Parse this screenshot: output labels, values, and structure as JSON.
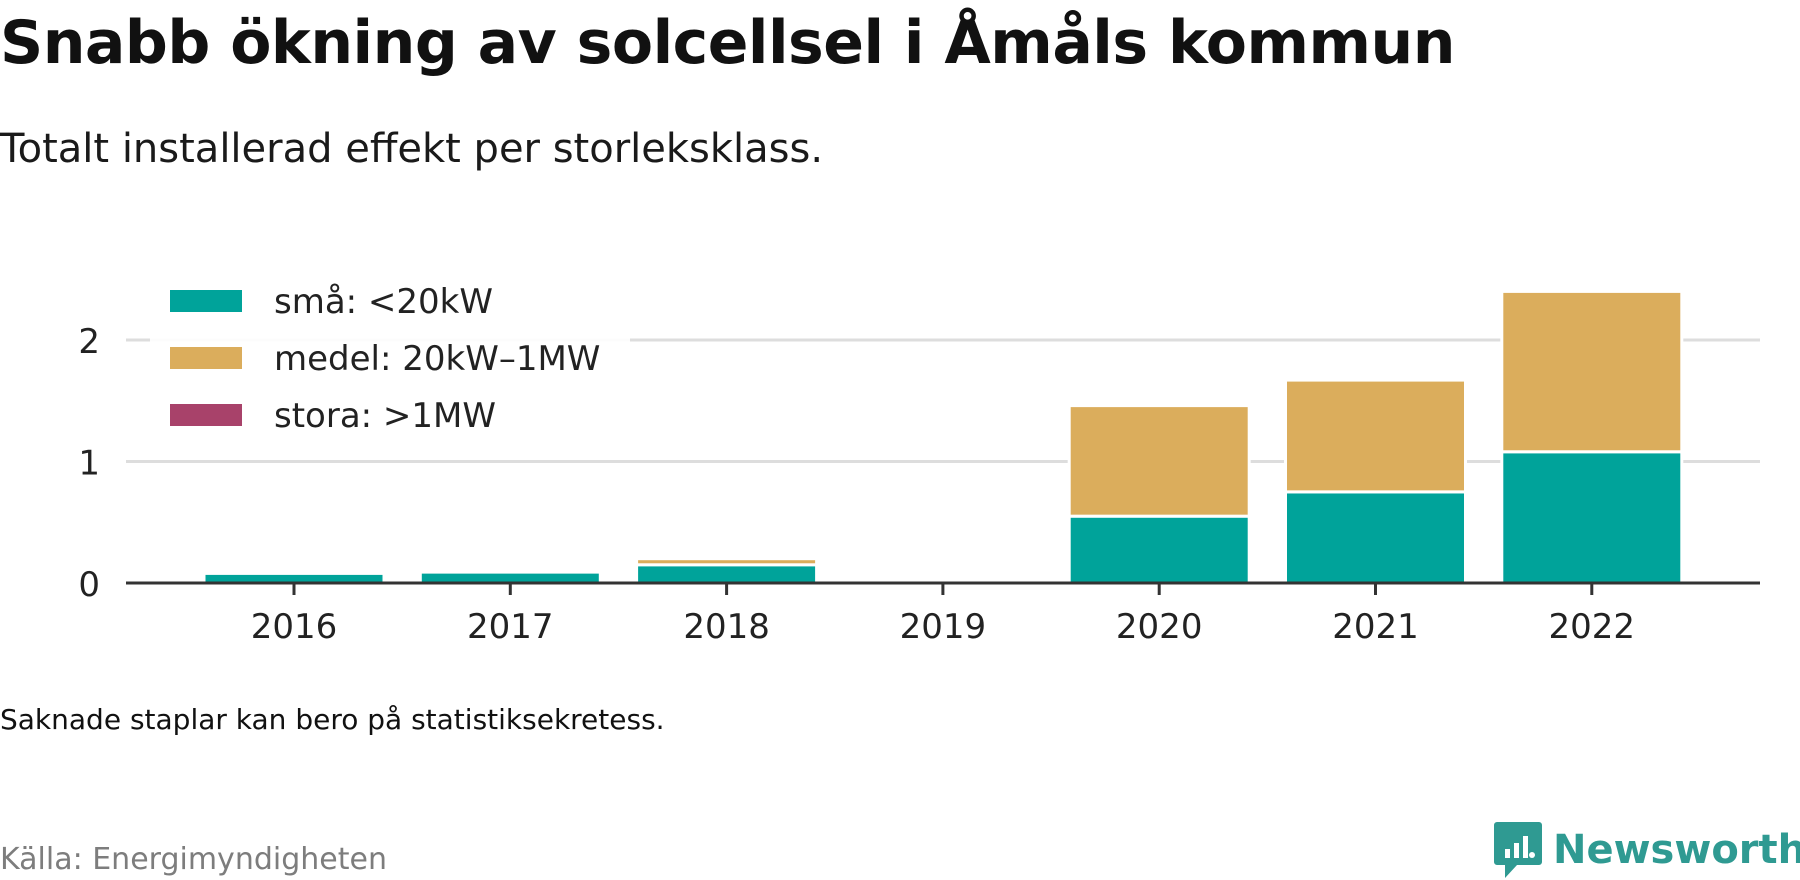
{
  "title": "Snabb ökning av solcellsel i Åmåls kommun",
  "subtitle": "Totalt installerad effekt per storleksklass.",
  "footnote": "Saknade staplar kan bero på statistiksekretess.",
  "source": "Källa: Energimyndigheten",
  "brand": "Newsworthy",
  "colors": {
    "sma": "#00a39a",
    "medel": "#dbad5c",
    "stora": "#a8426a",
    "brand": "#2f9a92"
  },
  "chart_data": {
    "type": "bar",
    "stacked": true,
    "categories": [
      "2016",
      "2017",
      "2018",
      "2019",
      "2020",
      "2021",
      "2022"
    ],
    "series": [
      {
        "name": "små: <20kW",
        "values": [
          0.08,
          0.09,
          0.15,
          0,
          0.55,
          0.75,
          1.08
        ]
      },
      {
        "name": "medel: 20kW–1MW",
        "values": [
          0.02,
          0.02,
          0.05,
          0,
          0.91,
          0.92,
          1.32
        ]
      },
      {
        "name": "stora: >1MW",
        "values": [
          0,
          0,
          0,
          0,
          0,
          0,
          0
        ]
      }
    ],
    "yticks": [
      "0",
      "1",
      "2"
    ],
    "ylim": [
      0,
      2.4
    ],
    "grid": true,
    "legend": "top-left"
  }
}
